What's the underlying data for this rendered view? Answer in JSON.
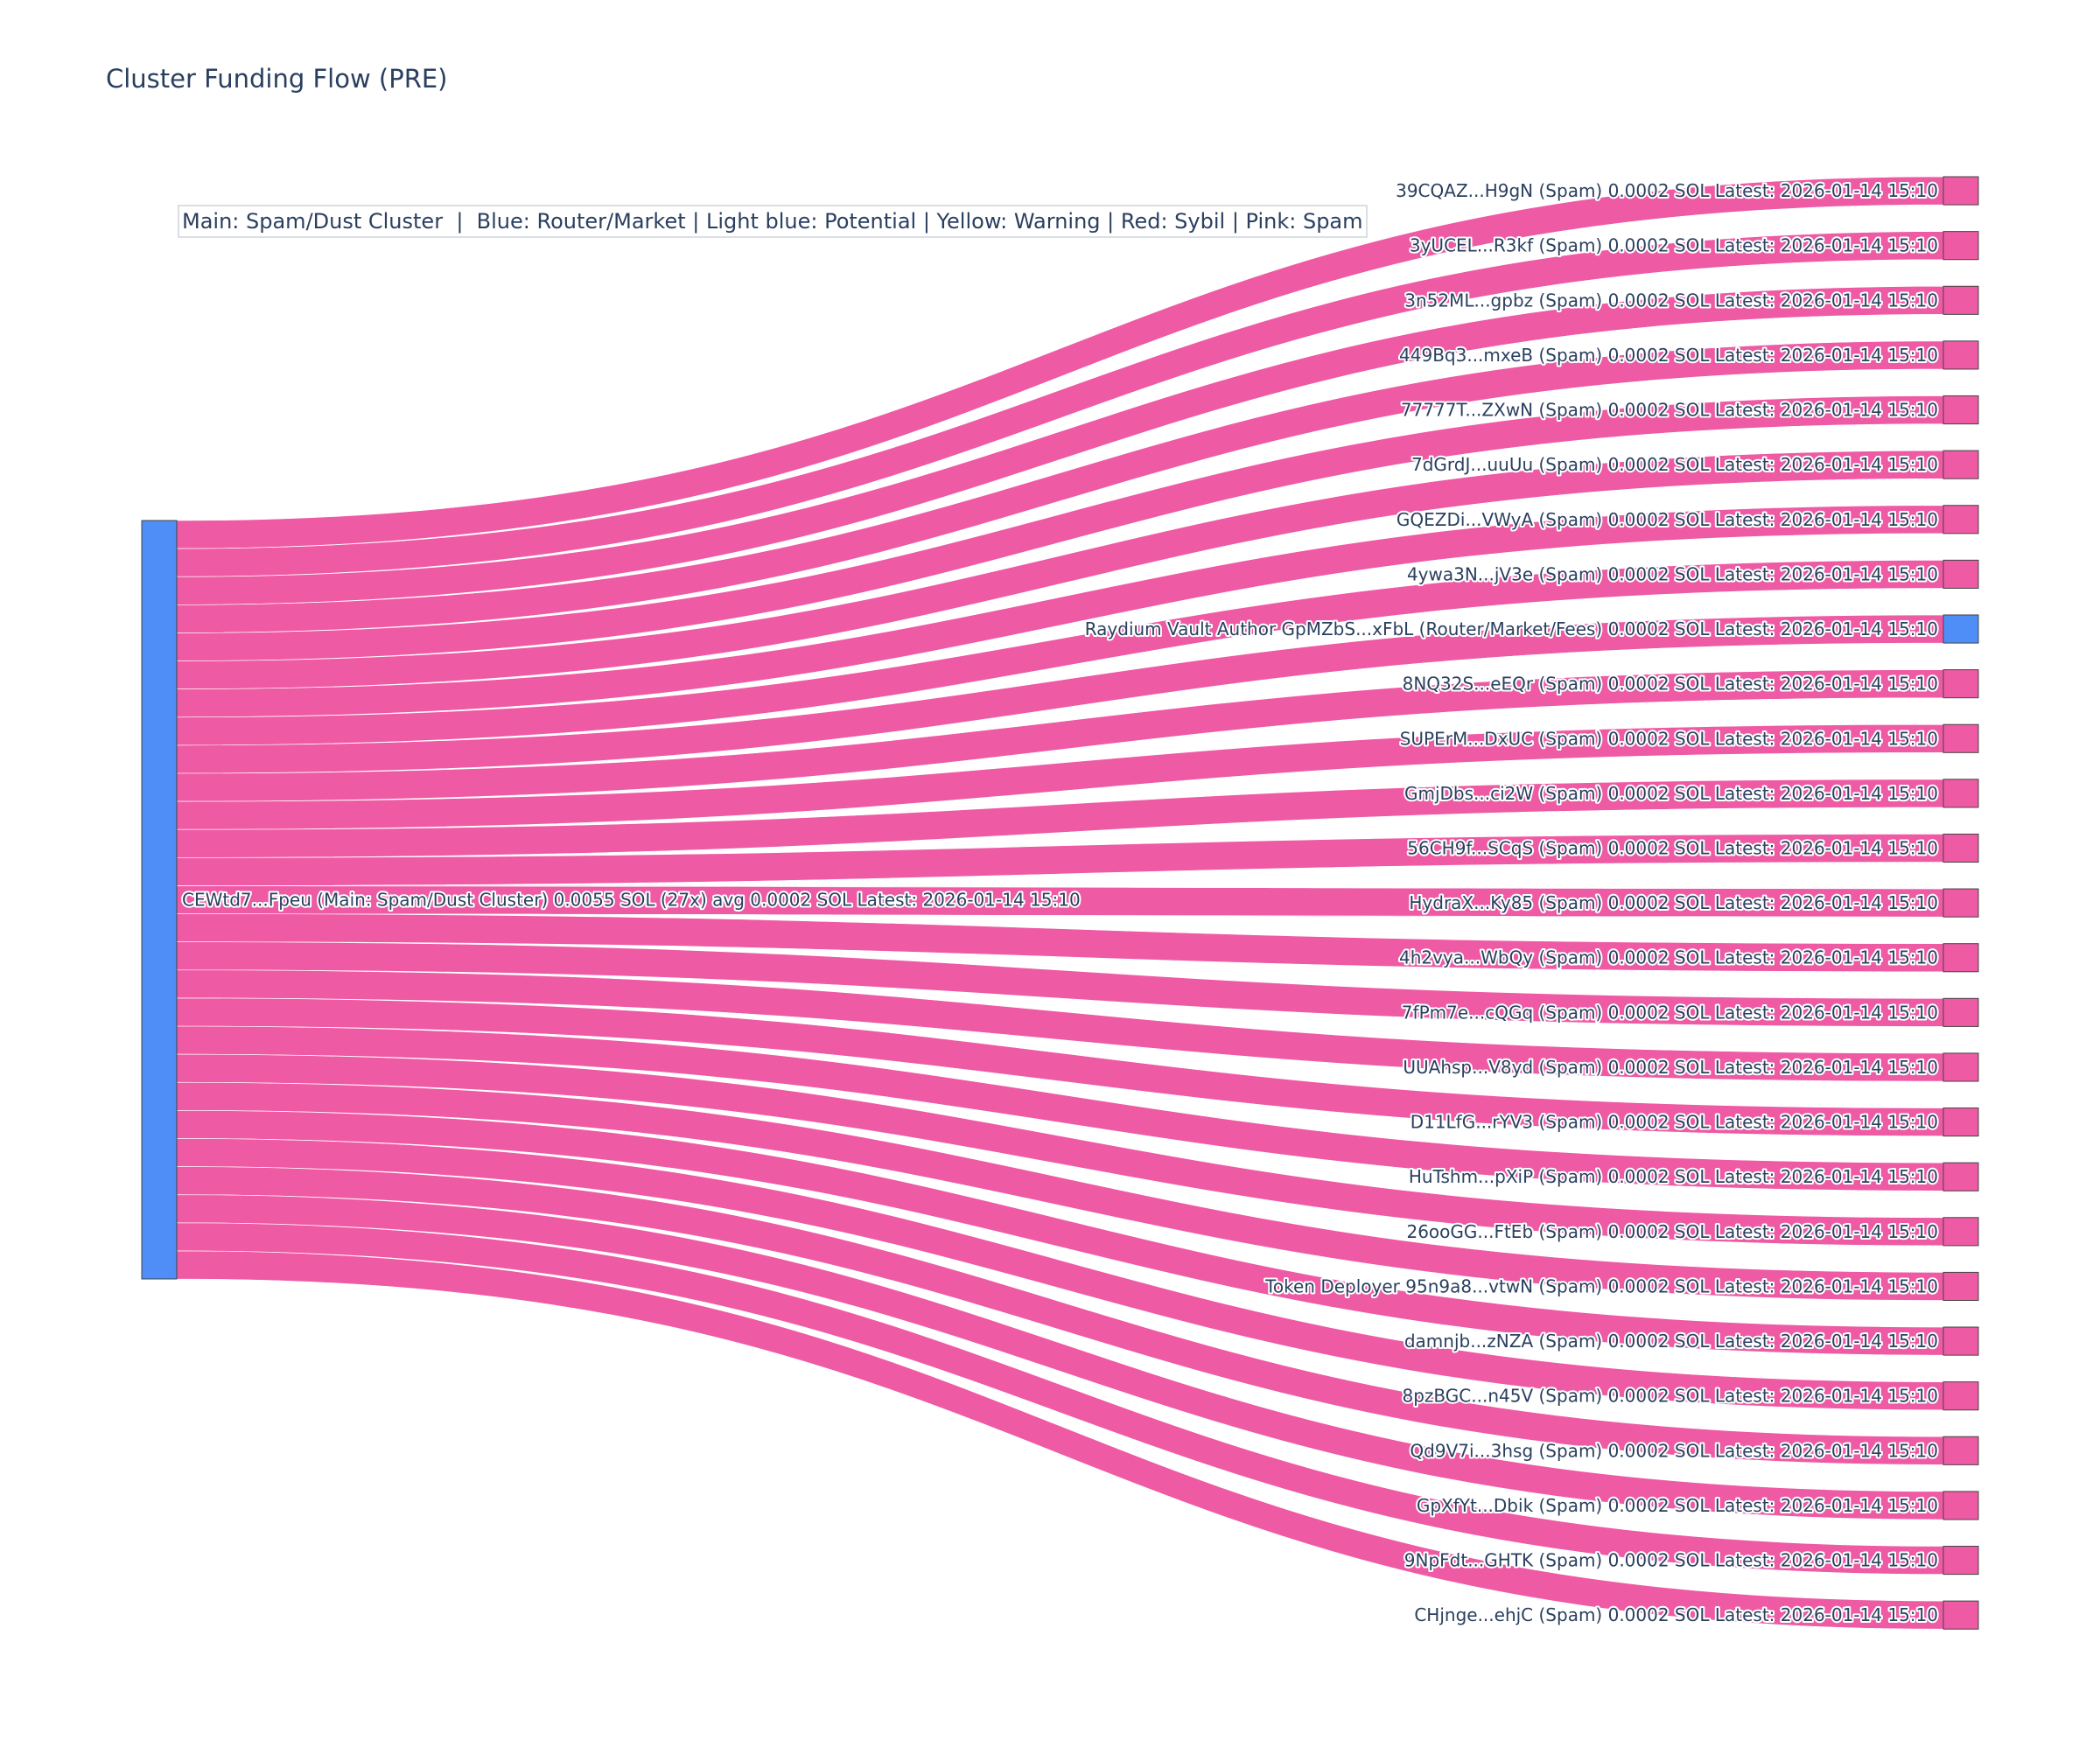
{
  "chart_data": {
    "type": "sankey",
    "title": "Cluster Funding Flow (PRE)",
    "annotation": "Main: Spam/Dust Cluster  |  Blue: Router/Market | Light blue: Potential | Yellow: Warning | Red: Sybil | Pink: Spam",
    "colors": {
      "main": "#4f8ef7",
      "router": "#4f8ef7",
      "spam": "#ee5aa4",
      "link": "#ee5aa4",
      "node_border": "#444444",
      "text": "#2a3f5f"
    },
    "source": {
      "label": "CEWtd7...Fpeu (Main: Spam/Dust Cluster) 0.0055 SOL (27x) avg 0.0002 SOL Latest: 2026-01-14 15:10",
      "category": "main",
      "total_sol": 0.0055,
      "tx_count": 27
    },
    "targets": [
      {
        "label": "39CQAZ...H9gN (Spam) 0.0002 SOL Latest: 2026-01-14 15:10",
        "category": "spam",
        "value": 0.0002
      },
      {
        "label": "3yUCEL...R3kf (Spam) 0.0002 SOL Latest: 2026-01-14 15:10",
        "category": "spam",
        "value": 0.0002
      },
      {
        "label": "3n52ML...gpbz (Spam) 0.0002 SOL Latest: 2026-01-14 15:10",
        "category": "spam",
        "value": 0.0002
      },
      {
        "label": "449Bq3...mxeB (Spam) 0.0002 SOL Latest: 2026-01-14 15:10",
        "category": "spam",
        "value": 0.0002
      },
      {
        "label": "77777T...ZXwN (Spam) 0.0002 SOL Latest: 2026-01-14 15:10",
        "category": "spam",
        "value": 0.0002
      },
      {
        "label": "7dGrdJ...uuUu (Spam) 0.0002 SOL Latest: 2026-01-14 15:10",
        "category": "spam",
        "value": 0.0002
      },
      {
        "label": "GQEZDi...VWyA (Spam) 0.0002 SOL Latest: 2026-01-14 15:10",
        "category": "spam",
        "value": 0.0002
      },
      {
        "label": "4ywa3N...jV3e (Spam) 0.0002 SOL Latest: 2026-01-14 15:10",
        "category": "spam",
        "value": 0.0002
      },
      {
        "label": "Raydium Vault Author GpMZbS...xFbL (Router/Market/Fees) 0.0002 SOL Latest: 2026-01-14 15:10",
        "category": "router",
        "value": 0.0002
      },
      {
        "label": "8NQ32S...eEQr (Spam) 0.0002 SOL Latest: 2026-01-14 15:10",
        "category": "spam",
        "value": 0.0002
      },
      {
        "label": "SUPErM...DxUC (Spam) 0.0002 SOL Latest: 2026-01-14 15:10",
        "category": "spam",
        "value": 0.0002
      },
      {
        "label": "GmjDbs...ci2W (Spam) 0.0002 SOL Latest: 2026-01-14 15:10",
        "category": "spam",
        "value": 0.0002
      },
      {
        "label": "56CH9f...SCqS (Spam) 0.0002 SOL Latest: 2026-01-14 15:10",
        "category": "spam",
        "value": 0.0002
      },
      {
        "label": "HydraX...Ky85 (Spam) 0.0002 SOL Latest: 2026-01-14 15:10",
        "category": "spam",
        "value": 0.0002
      },
      {
        "label": "4h2vya...WbQy (Spam) 0.0002 SOL Latest: 2026-01-14 15:10",
        "category": "spam",
        "value": 0.0002
      },
      {
        "label": "7fPm7e...cQGq (Spam) 0.0002 SOL Latest: 2026-01-14 15:10",
        "category": "spam",
        "value": 0.0002
      },
      {
        "label": "UUAhsp...V8yd (Spam) 0.0002 SOL Latest: 2026-01-14 15:10",
        "category": "spam",
        "value": 0.0002
      },
      {
        "label": "D11LfG...rYV3 (Spam) 0.0002 SOL Latest: 2026-01-14 15:10",
        "category": "spam",
        "value": 0.0002
      },
      {
        "label": "HuTshm...pXiP (Spam) 0.0002 SOL Latest: 2026-01-14 15:10",
        "category": "spam",
        "value": 0.0002
      },
      {
        "label": "26ooGG...FtEb (Spam) 0.0002 SOL Latest: 2026-01-14 15:10",
        "category": "spam",
        "value": 0.0002
      },
      {
        "label": "Token Deployer 95n9a8...vtwN (Spam) 0.0002 SOL Latest: 2026-01-14 15:10",
        "category": "spam",
        "value": 0.0002
      },
      {
        "label": "damnjb...zNZA (Spam) 0.0002 SOL Latest: 2026-01-14 15:10",
        "category": "spam",
        "value": 0.0002
      },
      {
        "label": "8pzBGC...n45V (Spam) 0.0002 SOL Latest: 2026-01-14 15:10",
        "category": "spam",
        "value": 0.0002
      },
      {
        "label": "Qd9V7i...3hsg (Spam) 0.0002 SOL Latest: 2026-01-14 15:10",
        "category": "spam",
        "value": 0.0002
      },
      {
        "label": "GpXfYt...Dbik (Spam) 0.0002 SOL Latest: 2026-01-14 15:10",
        "category": "spam",
        "value": 0.0002
      },
      {
        "label": "9NpFdt...GHTK (Spam) 0.0002 SOL Latest: 2026-01-14 15:10",
        "category": "spam",
        "value": 0.0002
      },
      {
        "label": "CHjnge...ehjC (Spam) 0.0002 SOL Latest: 2026-01-14 15:10",
        "category": "spam",
        "value": 0.0002
      }
    ]
  }
}
